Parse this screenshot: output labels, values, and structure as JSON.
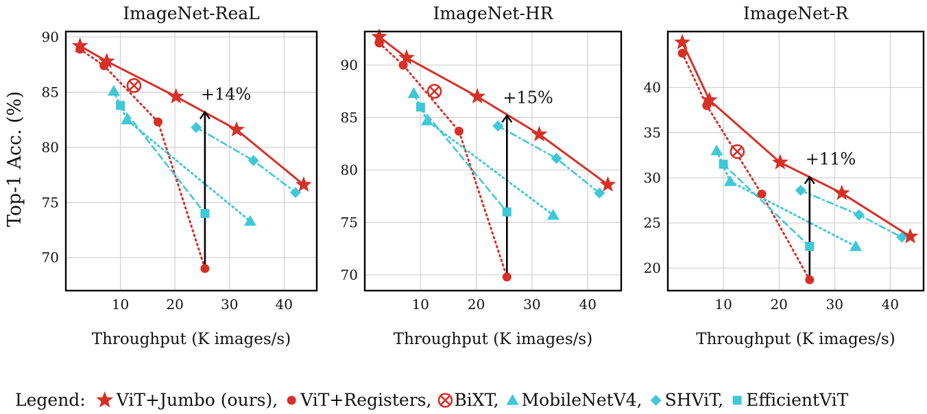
{
  "figure": {
    "ylabel": "Top-1 Acc. (%)",
    "legend_prefix": "Legend:"
  },
  "colors": {
    "red": "#d63027",
    "cyan": "#3ec8d8",
    "grid": "#c8c8c8",
    "arrow": "#000000"
  },
  "legend": [
    {
      "label": "ViT+Jumbo (ours),",
      "marker": "star",
      "color": "#d63027"
    },
    {
      "label": "ViT+Registers,",
      "marker": "circle",
      "color": "#d63027"
    },
    {
      "label": "BiXT,",
      "marker": "circled-x",
      "color": "#d63027"
    },
    {
      "label": "MobileNetV4,",
      "marker": "triangle",
      "color": "#3ec8d8"
    },
    {
      "label": "SHViT,",
      "marker": "diamond",
      "color": "#3ec8d8"
    },
    {
      "label": "EfficientViT",
      "marker": "square",
      "color": "#3ec8d8"
    }
  ],
  "chart_data": [
    {
      "type": "line",
      "title": "ImageNet-ReaL",
      "xlabel": "Throughput (K images/s)",
      "ylabel": "Top-1 Acc. (%)",
      "xlim": [
        0,
        46
      ],
      "ylim": [
        67,
        90.5
      ],
      "xticks": [
        10,
        20,
        30,
        40
      ],
      "yticks": [
        70,
        75,
        80,
        85,
        90
      ],
      "grid": true,
      "annotation": {
        "text": "+14%",
        "x": 25.5,
        "y_from": 69.0,
        "y_to": 83.2
      },
      "series": [
        {
          "name": "ViT+Jumbo (ours)",
          "marker": "star",
          "style": "solid",
          "x": [
            2.6,
            7.5,
            20.2,
            31.3,
            43.6
          ],
          "y": [
            89.2,
            87.8,
            84.6,
            81.6,
            76.6
          ]
        },
        {
          "name": "ViT+Registers",
          "marker": "circle",
          "style": "dotted",
          "x": [
            2.6,
            7.0,
            16.9,
            25.5
          ],
          "y": [
            88.9,
            87.4,
            82.3,
            69.0
          ]
        },
        {
          "name": "BiXT",
          "marker": "circled-x",
          "style": "none",
          "x": [
            12.5
          ],
          "y": [
            85.6
          ]
        },
        {
          "name": "MobileNetV4",
          "marker": "triangle",
          "style": "dotted",
          "x": [
            8.8,
            11.2,
            33.8
          ],
          "y": [
            85.1,
            82.5,
            73.3
          ]
        },
        {
          "name": "SHViT",
          "marker": "diamond",
          "style": "dashdot",
          "x": [
            23.9,
            34.4,
            42.1
          ],
          "y": [
            81.8,
            78.8,
            75.9
          ]
        },
        {
          "name": "EfficientViT",
          "marker": "square",
          "style": "dashed",
          "x": [
            10.0,
            25.5
          ],
          "y": [
            83.8,
            74.0
          ]
        }
      ]
    },
    {
      "type": "line",
      "title": "ImageNet-HR",
      "xlabel": "Throughput (K images/s)",
      "ylabel": "",
      "xlim": [
        0,
        46
      ],
      "ylim": [
        68.5,
        93.2
      ],
      "xticks": [
        10,
        20,
        30,
        40
      ],
      "yticks": [
        70,
        75,
        80,
        85,
        90
      ],
      "grid": true,
      "annotation": {
        "text": "+15%",
        "x": 25.5,
        "y_from": 69.8,
        "y_to": 85.2
      },
      "series": [
        {
          "name": "ViT+Jumbo (ours)",
          "marker": "star",
          "style": "solid",
          "x": [
            2.6,
            7.5,
            20.2,
            31.3,
            43.6
          ],
          "y": [
            92.7,
            90.7,
            87.0,
            83.4,
            78.6
          ]
        },
        {
          "name": "ViT+Registers",
          "marker": "circle",
          "style": "dotted",
          "x": [
            2.6,
            6.9,
            16.9,
            25.5
          ],
          "y": [
            92.1,
            90.0,
            83.7,
            69.8
          ]
        },
        {
          "name": "BiXT",
          "marker": "circled-x",
          "style": "none",
          "x": [
            12.5
          ],
          "y": [
            87.5
          ]
        },
        {
          "name": "MobileNetV4",
          "marker": "triangle",
          "style": "dotted",
          "x": [
            8.8,
            11.2,
            33.8
          ],
          "y": [
            87.3,
            84.7,
            75.7
          ]
        },
        {
          "name": "SHViT",
          "marker": "diamond",
          "style": "dashdot",
          "x": [
            23.9,
            34.4,
            42.1
          ],
          "y": [
            84.2,
            81.1,
            77.8
          ]
        },
        {
          "name": "EfficientViT",
          "marker": "square",
          "style": "dashed",
          "x": [
            10.0,
            25.5
          ],
          "y": [
            86.0,
            76.0
          ]
        }
      ]
    },
    {
      "type": "line",
      "title": "ImageNet-R",
      "xlabel": "Throughput (K images/s)",
      "ylabel": "",
      "xlim": [
        0,
        46
      ],
      "ylim": [
        17.5,
        46.2
      ],
      "xticks": [
        10,
        20,
        30,
        40
      ],
      "yticks": [
        20,
        25,
        30,
        35,
        40
      ],
      "grid": true,
      "annotation": {
        "text": "+11%",
        "x": 25.5,
        "y_from": 18.7,
        "y_to": 30.1
      },
      "series": [
        {
          "name": "ViT+Jumbo (ours)",
          "marker": "star",
          "style": "solid",
          "x": [
            2.6,
            7.5,
            20.2,
            31.3,
            43.6
          ],
          "y": [
            45.0,
            38.6,
            31.7,
            28.3,
            23.5
          ]
        },
        {
          "name": "ViT+Registers",
          "marker": "circle",
          "style": "dotted",
          "x": [
            2.6,
            7.0,
            16.9,
            25.5
          ],
          "y": [
            43.8,
            38.0,
            28.2,
            18.7
          ]
        },
        {
          "name": "BiXT",
          "marker": "circled-x",
          "style": "none",
          "x": [
            12.5
          ],
          "y": [
            32.9
          ]
        },
        {
          "name": "MobileNetV4",
          "marker": "triangle",
          "style": "dotted",
          "x": [
            8.8,
            11.2,
            33.8
          ],
          "y": [
            33.0,
            29.6,
            22.4
          ]
        },
        {
          "name": "SHViT",
          "marker": "diamond",
          "style": "dashdot",
          "x": [
            23.9,
            34.4,
            42.1
          ],
          "y": [
            28.6,
            25.9,
            23.4
          ]
        },
        {
          "name": "EfficientViT",
          "marker": "square",
          "style": "dashed",
          "x": [
            10.0,
            25.5
          ],
          "y": [
            31.5,
            22.4
          ]
        }
      ]
    }
  ]
}
